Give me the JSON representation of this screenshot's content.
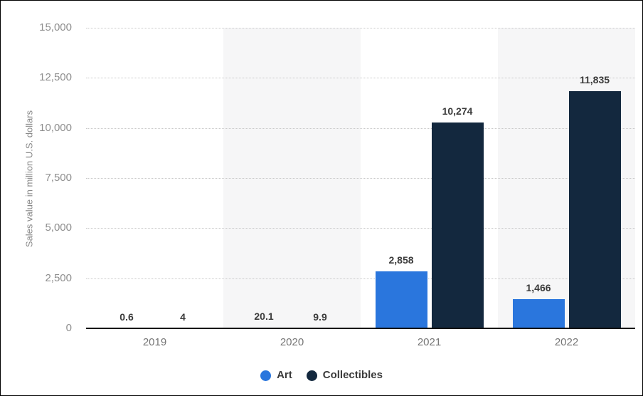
{
  "chart_data": {
    "type": "bar",
    "title": "",
    "categories": [
      "2019",
      "2020",
      "2021",
      "2022"
    ],
    "series": [
      {
        "name": "Art",
        "color": "#2a76dd",
        "values": [
          0.6,
          20.1,
          2858,
          1466
        ],
        "labels": [
          "0.6",
          "20.1",
          "2,858",
          "1,466"
        ]
      },
      {
        "name": "Collectibles",
        "color": "#13283e",
        "values": [
          4,
          9.9,
          10274,
          11835
        ],
        "labels": [
          "4",
          "9.9",
          "10,274",
          "11,835"
        ]
      }
    ],
    "xlabel": "",
    "ylabel": "Sales value in million U.S. dollars",
    "ylim": [
      0,
      15000
    ],
    "ytick_step": 2500,
    "ytick_labels": [
      "0",
      "2,500",
      "5,000",
      "7,500",
      "10,000",
      "12,500",
      "15,000"
    ],
    "grid": "horizontal-dotted",
    "plot_bands": "alternate category columns shaded",
    "legend_position": "bottom-center",
    "colors": {
      "art": "#2a76dd",
      "collectibles": "#13283e",
      "band": "#f6f6f7",
      "gridline": "#c9c9c9",
      "axis_line": "#111111",
      "tick_text": "#8e8e8e",
      "value_text": "#3b3b3b"
    }
  }
}
